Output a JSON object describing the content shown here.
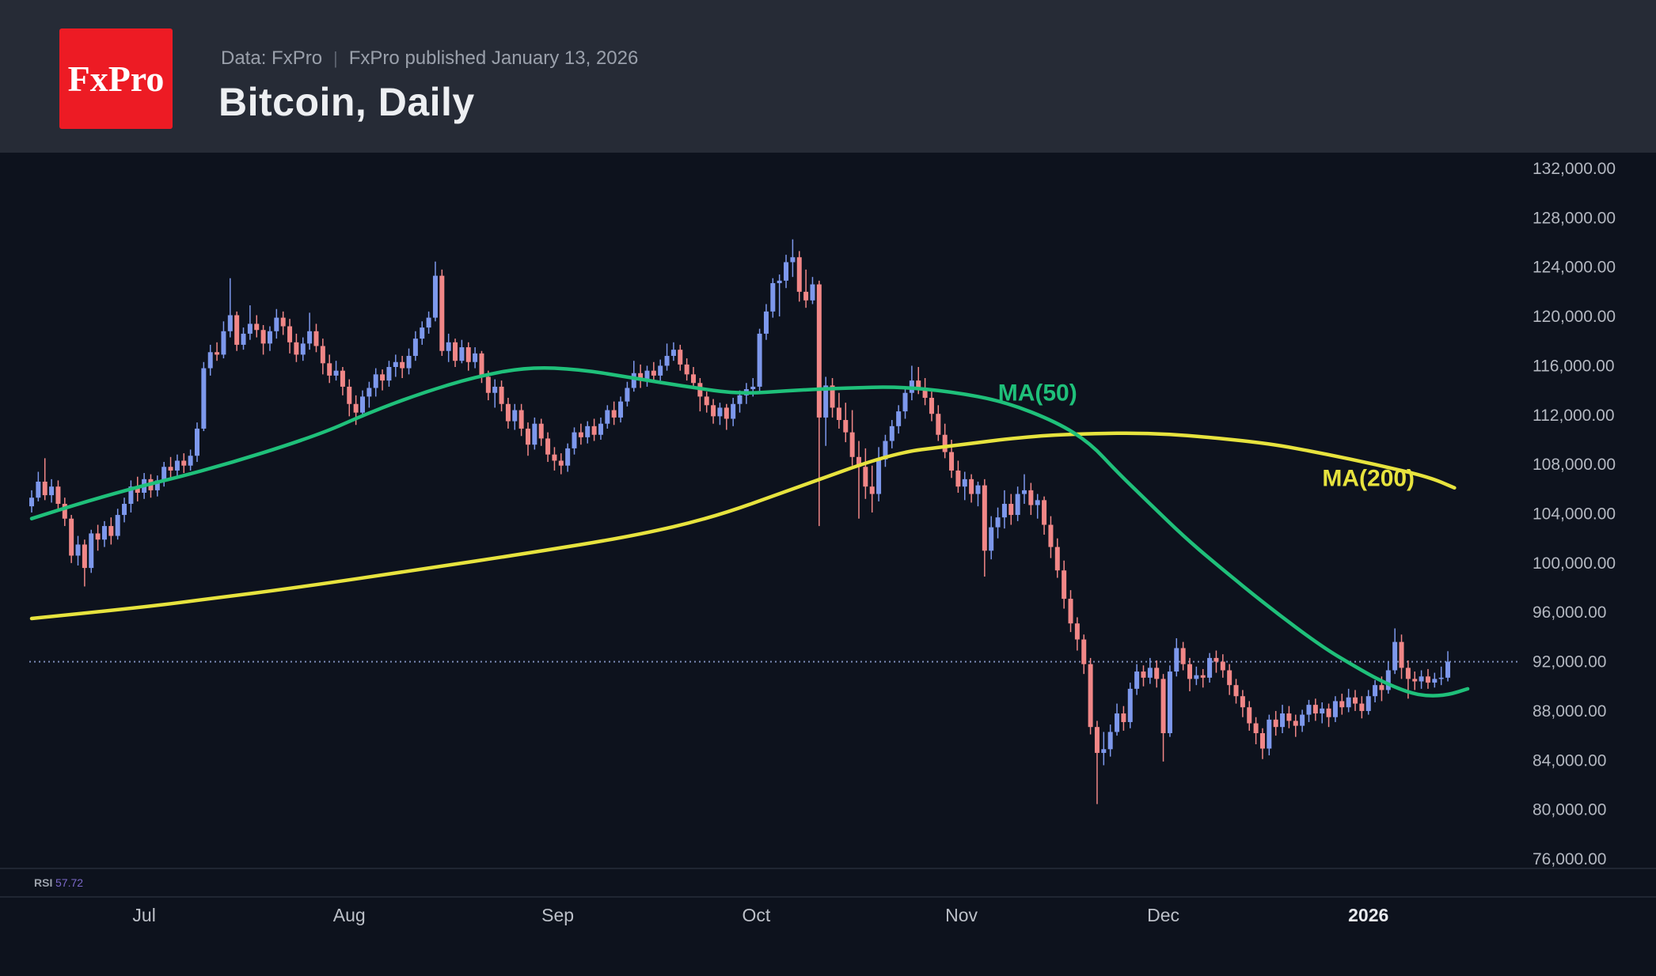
{
  "header": {
    "logo_text": "FxPro",
    "logo_color": "#ED1B24",
    "source_prefix": "Data: FxPro",
    "separator": "|",
    "published": "FxPro published January 13, 2026",
    "title": "Bitcoin, Daily"
  },
  "rsi_pane": {
    "label": "RSI",
    "value": "57.72",
    "value_color": "#7B68C8",
    "label_color": "#9CA2AC"
  },
  "chart_data": {
    "type": "candlestick",
    "title": "Bitcoin, Daily",
    "grid": false,
    "legend_position": "none",
    "colors": {
      "up": "#7D98EC",
      "down": "#F18787",
      "last_price_line": "#7C8CB8",
      "tick_text": "#B4B8C1",
      "month_text": "#BCC0C8",
      "month_text_emphasis": "#E8EAEE",
      "separator": "#262C39"
    },
    "y_axis": {
      "min": 76000,
      "max": 132000,
      "step": 4000,
      "labels": [
        "132,000.00",
        "128,000.00",
        "124,000.00",
        "120,000.00",
        "116,000.00",
        "112,000.00",
        "108,000.00",
        "104,000.00",
        "100,000.00",
        "96,000.00",
        "92,000.00",
        "88,000.00",
        "84,000.00",
        "80,000.00",
        "76,000.00"
      ]
    },
    "x_axis": {
      "months": [
        {
          "label": "Jul",
          "index": 17,
          "emphasis": false
        },
        {
          "label": "Aug",
          "index": 48,
          "emphasis": false
        },
        {
          "label": "Sep",
          "index": 79.5,
          "emphasis": false
        },
        {
          "label": "Oct",
          "index": 109.5,
          "emphasis": false
        },
        {
          "label": "Nov",
          "index": 140.5,
          "emphasis": false
        },
        {
          "label": "Dec",
          "index": 171,
          "emphasis": false
        },
        {
          "label": "2026",
          "index": 202,
          "emphasis": true
        }
      ]
    },
    "last_price_line": {
      "value": 92000,
      "style": "dotted"
    },
    "first_open": 104600,
    "candles_hlc": [
      [
        105900,
        104100,
        105300
      ],
      [
        107400,
        105000,
        106600
      ],
      [
        108500,
        105100,
        105500
      ],
      [
        106800,
        104900,
        106200
      ],
      [
        106700,
        104300,
        104800
      ],
      [
        105300,
        103000,
        103600
      ],
      [
        103900,
        100000,
        100600
      ],
      [
        102200,
        99800,
        101500
      ],
      [
        101900,
        98100,
        99600
      ],
      [
        102700,
        99200,
        102400
      ],
      [
        103100,
        101000,
        101900
      ],
      [
        103400,
        101300,
        103000
      ],
      [
        103700,
        101500,
        102200
      ],
      [
        104400,
        101900,
        103900
      ],
      [
        105300,
        103300,
        104800
      ],
      [
        106700,
        104100,
        106200
      ],
      [
        107000,
        105000,
        105700
      ],
      [
        107300,
        105200,
        106800
      ],
      [
        107200,
        105300,
        105900
      ],
      [
        107100,
        105400,
        106700
      ],
      [
        108200,
        106200,
        107800
      ],
      [
        108600,
        106900,
        107500
      ],
      [
        108800,
        107000,
        108300
      ],
      [
        108900,
        107300,
        107900
      ],
      [
        109200,
        107500,
        108700
      ],
      [
        111400,
        108200,
        110900
      ],
      [
        116300,
        110700,
        115800
      ],
      [
        117700,
        115200,
        117100
      ],
      [
        117900,
        116400,
        116900
      ],
      [
        119600,
        116600,
        118800
      ],
      [
        123100,
        118300,
        120100
      ],
      [
        120400,
        117200,
        117700
      ],
      [
        119100,
        117300,
        118600
      ],
      [
        120900,
        118100,
        119400
      ],
      [
        120100,
        118300,
        118900
      ],
      [
        119300,
        116900,
        117800
      ],
      [
        119200,
        117200,
        118800
      ],
      [
        120600,
        118200,
        119900
      ],
      [
        120400,
        118500,
        119200
      ],
      [
        119800,
        117000,
        117900
      ],
      [
        118600,
        116300,
        116900
      ],
      [
        118300,
        116400,
        117800
      ],
      [
        120300,
        117300,
        118800
      ],
      [
        119400,
        117100,
        117600
      ],
      [
        118200,
        115300,
        116200
      ],
      [
        116900,
        114600,
        115200
      ],
      [
        116400,
        114800,
        115600
      ],
      [
        115900,
        113600,
        114300
      ],
      [
        114900,
        111900,
        112900
      ],
      [
        113600,
        111200,
        112200
      ],
      [
        114000,
        111800,
        113500
      ],
      [
        114700,
        112600,
        114200
      ],
      [
        115800,
        113500,
        115300
      ],
      [
        115700,
        114000,
        114800
      ],
      [
        116400,
        114300,
        115900
      ],
      [
        116900,
        115100,
        116300
      ],
      [
        116800,
        115000,
        115800
      ],
      [
        117400,
        115300,
        116800
      ],
      [
        118800,
        116400,
        118200
      ],
      [
        119600,
        117700,
        119100
      ],
      [
        120400,
        118600,
        119900
      ],
      [
        124450,
        119600,
        123300
      ],
      [
        123800,
        116800,
        117200
      ],
      [
        118600,
        116300,
        117900
      ],
      [
        118200,
        115900,
        116400
      ],
      [
        118100,
        116200,
        117500
      ],
      [
        117900,
        115600,
        116300
      ],
      [
        117500,
        115800,
        117000
      ],
      [
        117200,
        114600,
        115100
      ],
      [
        115600,
        113200,
        113800
      ],
      [
        114900,
        112600,
        114300
      ],
      [
        114800,
        112300,
        112900
      ],
      [
        113400,
        110900,
        111500
      ],
      [
        112900,
        110800,
        112400
      ],
      [
        112900,
        110300,
        110900
      ],
      [
        111400,
        108700,
        109600
      ],
      [
        111800,
        109200,
        111300
      ],
      [
        111700,
        109500,
        110100
      ],
      [
        110600,
        108200,
        108800
      ],
      [
        109400,
        107500,
        108300
      ],
      [
        108900,
        107200,
        107900
      ],
      [
        109700,
        107400,
        109300
      ],
      [
        111000,
        108800,
        110600
      ],
      [
        111300,
        109600,
        110200
      ],
      [
        111500,
        109700,
        111100
      ],
      [
        111700,
        109900,
        110400
      ],
      [
        111800,
        110000,
        111300
      ],
      [
        112800,
        110900,
        112400
      ],
      [
        113100,
        111200,
        111800
      ],
      [
        113500,
        111400,
        113100
      ],
      [
        114700,
        112700,
        114200
      ],
      [
        116400,
        113900,
        115400
      ],
      [
        116100,
        114200,
        114800
      ],
      [
        116000,
        114300,
        115600
      ],
      [
        116300,
        114700,
        115200
      ],
      [
        116500,
        114800,
        116000
      ],
      [
        117800,
        115600,
        116800
      ],
      [
        117900,
        116400,
        117300
      ],
      [
        117700,
        115600,
        116100
      ],
      [
        116600,
        114800,
        115300
      ],
      [
        115900,
        114100,
        114600
      ],
      [
        115000,
        112300,
        113500
      ],
      [
        113900,
        112200,
        112800
      ],
      [
        113300,
        111300,
        111900
      ],
      [
        113000,
        111200,
        112600
      ],
      [
        112900,
        110800,
        111700
      ],
      [
        113400,
        111100,
        112900
      ],
      [
        114000,
        112200,
        113600
      ],
      [
        114600,
        112900,
        114100
      ],
      [
        115000,
        113500,
        114300
      ],
      [
        119000,
        113900,
        118600
      ],
      [
        121000,
        118100,
        120400
      ],
      [
        123100,
        119900,
        122700
      ],
      [
        123400,
        120000,
        122900
      ],
      [
        125000,
        122300,
        124400
      ],
      [
        126250,
        123200,
        124800
      ],
      [
        125300,
        121200,
        122000
      ],
      [
        123800,
        120700,
        121300
      ],
      [
        123200,
        121000,
        122600
      ],
      [
        122900,
        103000,
        111800
      ],
      [
        115100,
        109500,
        114400
      ],
      [
        115000,
        111800,
        112600
      ],
      [
        113800,
        110900,
        111600
      ],
      [
        113000,
        109800,
        110600
      ],
      [
        112400,
        107900,
        108600
      ],
      [
        109900,
        103600,
        107800
      ],
      [
        109300,
        105200,
        106200
      ],
      [
        107900,
        104100,
        105600
      ],
      [
        109400,
        105000,
        108400
      ],
      [
        110400,
        107800,
        109900
      ],
      [
        111600,
        109300,
        111100
      ],
      [
        112800,
        110500,
        112300
      ],
      [
        114200,
        111700,
        113800
      ],
      [
        116000,
        113200,
        114800
      ],
      [
        115900,
        113700,
        114200
      ],
      [
        115000,
        112800,
        113400
      ],
      [
        113900,
        111500,
        112100
      ],
      [
        112800,
        109900,
        110400
      ],
      [
        111300,
        108500,
        109000
      ],
      [
        110000,
        106900,
        107500
      ],
      [
        108300,
        105700,
        106200
      ],
      [
        107400,
        105100,
        106800
      ],
      [
        107200,
        104900,
        105600
      ],
      [
        106600,
        104600,
        106300
      ],
      [
        106800,
        98900,
        101000
      ],
      [
        103800,
        100300,
        102900
      ],
      [
        104500,
        102000,
        103700
      ],
      [
        105900,
        102800,
        104800
      ],
      [
        105600,
        103100,
        103900
      ],
      [
        106200,
        103400,
        105600
      ],
      [
        107200,
        104800,
        105900
      ],
      [
        106500,
        103900,
        104700
      ],
      [
        105600,
        103600,
        105100
      ],
      [
        105400,
        102300,
        103100
      ],
      [
        103800,
        100400,
        101300
      ],
      [
        102000,
        98800,
        99400
      ],
      [
        100200,
        96300,
        97100
      ],
      [
        97800,
        94400,
        95100
      ],
      [
        95600,
        92900,
        93800
      ],
      [
        94200,
        91000,
        91800
      ],
      [
        92300,
        86100,
        86700
      ],
      [
        87200,
        80450,
        84600
      ],
      [
        86300,
        83600,
        84900
      ],
      [
        86900,
        84300,
        86300
      ],
      [
        88600,
        86000,
        87800
      ],
      [
        88400,
        86400,
        87100
      ],
      [
        90300,
        86600,
        89800
      ],
      [
        91800,
        89300,
        91200
      ],
      [
        91700,
        90000,
        90700
      ],
      [
        92300,
        90200,
        91500
      ],
      [
        92100,
        89900,
        90600
      ],
      [
        91000,
        83900,
        86200
      ],
      [
        91700,
        85900,
        91200
      ],
      [
        93900,
        90800,
        93100
      ],
      [
        93600,
        91300,
        91800
      ],
      [
        92300,
        89600,
        90600
      ],
      [
        91600,
        90100,
        90900
      ],
      [
        91400,
        89900,
        90700
      ],
      [
        92700,
        90300,
        92300
      ],
      [
        92900,
        91100,
        92000
      ],
      [
        92600,
        90700,
        91300
      ],
      [
        91800,
        89300,
        90100
      ],
      [
        90600,
        88600,
        89200
      ],
      [
        89700,
        87500,
        88300
      ],
      [
        88800,
        86400,
        87000
      ],
      [
        87500,
        85300,
        86200
      ],
      [
        86600,
        84100,
        84950
      ],
      [
        87700,
        84400,
        87300
      ],
      [
        88000,
        86000,
        86700
      ],
      [
        88500,
        86200,
        87800
      ],
      [
        88400,
        86600,
        87200
      ],
      [
        87700,
        85900,
        86800
      ],
      [
        88100,
        86300,
        87700
      ],
      [
        88900,
        87100,
        88500
      ],
      [
        89000,
        87200,
        87800
      ],
      [
        88700,
        87000,
        88200
      ],
      [
        88600,
        86700,
        87500
      ],
      [
        89200,
        87100,
        88800
      ],
      [
        89400,
        87700,
        88300
      ],
      [
        89800,
        87900,
        89100
      ],
      [
        89700,
        88000,
        88600
      ],
      [
        89200,
        87400,
        88000
      ],
      [
        89700,
        87700,
        89200
      ],
      [
        90500,
        88700,
        90100
      ],
      [
        90800,
        88800,
        89700
      ],
      [
        92000,
        89400,
        91300
      ],
      [
        94700,
        91000,
        93600
      ],
      [
        94200,
        90600,
        91500
      ],
      [
        92100,
        89000,
        90600
      ],
      [
        91200,
        89700,
        90400
      ],
      [
        91300,
        89800,
        90800
      ],
      [
        91400,
        89800,
        90300
      ],
      [
        91100,
        89900,
        90600
      ],
      [
        91600,
        90100,
        90700
      ],
      [
        92850,
        90400,
        92000
      ]
    ],
    "ma50": {
      "label": "MA(50)",
      "color": "#1FC07A",
      "label_index": 152,
      "label_value": 113800,
      "points": [
        [
          0,
          103600
        ],
        [
          11,
          105500
        ],
        [
          27,
          107600
        ],
        [
          43,
          110300
        ],
        [
          51,
          112200
        ],
        [
          59,
          113800
        ],
        [
          67,
          115100
        ],
        [
          75,
          115900
        ],
        [
          83,
          115700
        ],
        [
          91,
          115000
        ],
        [
          99,
          114300
        ],
        [
          107,
          113700
        ],
        [
          115,
          114000
        ],
        [
          123,
          114200
        ],
        [
          131,
          114300
        ],
        [
          139,
          113900
        ],
        [
          147,
          113100
        ],
        [
          155,
          111400
        ],
        [
          160,
          109700
        ],
        [
          164,
          107400
        ],
        [
          169,
          104800
        ],
        [
          174,
          102200
        ],
        [
          179,
          99900
        ],
        [
          187,
          96400
        ],
        [
          195,
          93200
        ],
        [
          200,
          91600
        ],
        [
          204,
          90400
        ],
        [
          208,
          89500
        ],
        [
          211,
          89200
        ],
        [
          214,
          89300
        ],
        [
          217,
          89800
        ]
      ]
    },
    "ma200": {
      "label": "MA(200)",
      "color": "#E7E33E",
      "label_index": 202,
      "label_value": 106900,
      "points": [
        [
          0,
          95500
        ],
        [
          15,
          96300
        ],
        [
          27,
          97100
        ],
        [
          40,
          98000
        ],
        [
          59,
          99500
        ],
        [
          75,
          100800
        ],
        [
          91,
          102200
        ],
        [
          103,
          103700
        ],
        [
          115,
          106000
        ],
        [
          130,
          108900
        ],
        [
          139,
          109500
        ],
        [
          151,
          110300
        ],
        [
          160,
          110500
        ],
        [
          168,
          110550
        ],
        [
          176,
          110300
        ],
        [
          187,
          109700
        ],
        [
          195,
          108900
        ],
        [
          203,
          108000
        ],
        [
          211,
          107000
        ],
        [
          215,
          106100
        ]
      ]
    }
  }
}
